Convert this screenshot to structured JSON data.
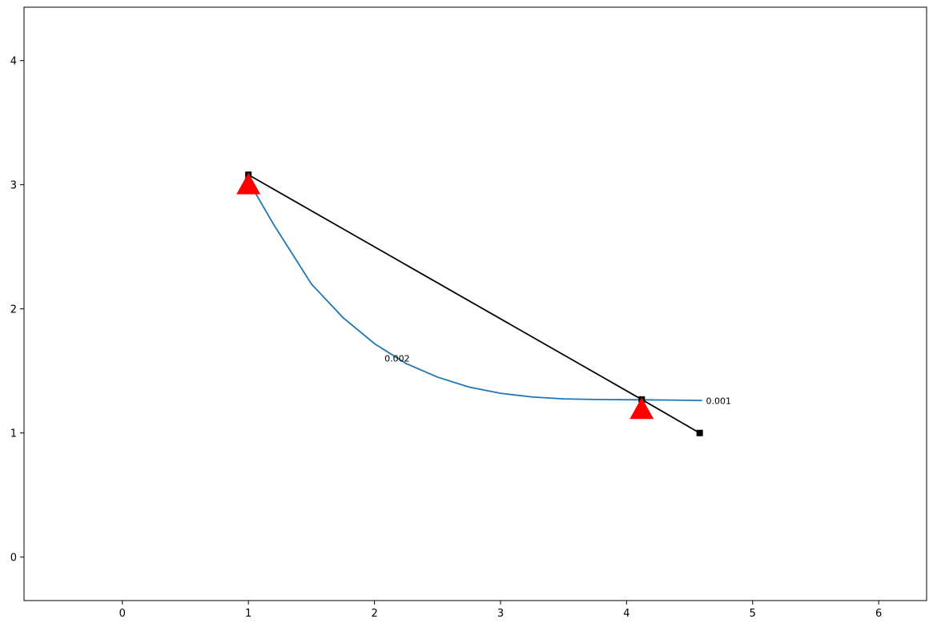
{
  "chart_data": {
    "type": "line",
    "xlim": [
      -0.78,
      6.38
    ],
    "ylim": [
      -0.35,
      4.43
    ],
    "xticks": [
      0,
      1,
      2,
      3,
      4,
      5,
      6
    ],
    "yticks": [
      0,
      1,
      2,
      3,
      4
    ],
    "series": [
      {
        "color": "#1f77b4",
        "marker": "none",
        "x": [
          1.0,
          1.2,
          1.5,
          1.75,
          2.0,
          2.25,
          2.5,
          2.75,
          3.0,
          3.25,
          3.5,
          3.75,
          4.0,
          4.12,
          4.35,
          4.6
        ],
        "values": [
          3.03,
          2.68,
          2.2,
          1.93,
          1.72,
          1.56,
          1.45,
          1.37,
          1.32,
          1.29,
          1.275,
          1.27,
          1.268,
          1.267,
          1.265,
          1.262
        ]
      },
      {
        "color": "#000000",
        "marker": "square",
        "x": [
          1.0,
          4.12,
          4.58
        ],
        "values": [
          3.08,
          1.27,
          1.0
        ]
      },
      {
        "color": "#ff0000",
        "marker": "triangle",
        "type": "scatter",
        "x": [
          1.0,
          4.12
        ],
        "values": [
          3.0,
          1.19
        ]
      }
    ],
    "annotations": [
      {
        "text": "0.002",
        "x": 2.08,
        "y": 1.6
      },
      {
        "text": "0.001",
        "x": 4.63,
        "y": 1.26
      }
    ]
  }
}
